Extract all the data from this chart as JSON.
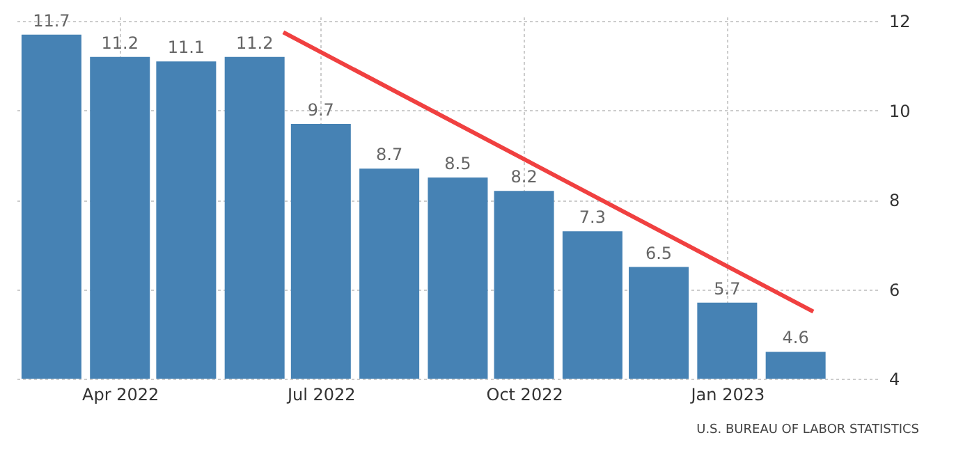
{
  "chart_data": {
    "type": "bar",
    "x": [
      "2022-03",
      "2022-04",
      "2022-05",
      "2022-06",
      "2022-07",
      "2022-08",
      "2022-09",
      "2022-10",
      "2022-11",
      "2022-12",
      "2023-01",
      "2023-02"
    ],
    "xlim": [
      "2022-02-12",
      "2023-03-10"
    ],
    "xticks": [
      {
        "value": "2022-04",
        "label": "Apr 2022"
      },
      {
        "value": "2022-07",
        "label": "Jul 2022"
      },
      {
        "value": "2022-10",
        "label": "Oct 2022"
      },
      {
        "value": "2023-01",
        "label": "Jan 2023"
      }
    ],
    "series": [
      {
        "color": "#4682b4",
        "values": [
          11.7,
          11.2,
          11.1,
          11.2,
          9.7,
          8.7,
          8.5,
          8.2,
          7.3,
          6.5,
          5.7,
          4.6
        ],
        "value_labels": [
          "11.7",
          "11.2",
          "11.1",
          "11.2",
          "9.7",
          "8.7",
          "8.5",
          "8.2",
          "7.3",
          "6.5",
          "5.7",
          "4.6"
        ]
      },
      {
        "type": "line",
        "color": "#f04040",
        "x": [
          "2022-06-14",
          "2023-02-09"
        ],
        "values": [
          11.75,
          5.5
        ]
      }
    ],
    "ylim": [
      4,
      12.1
    ],
    "yticks": [
      4,
      6,
      8,
      10,
      12
    ],
    "grid": true,
    "annotations": [
      "U.S. BUREAU OF LABOR STATISTICS"
    ]
  }
}
